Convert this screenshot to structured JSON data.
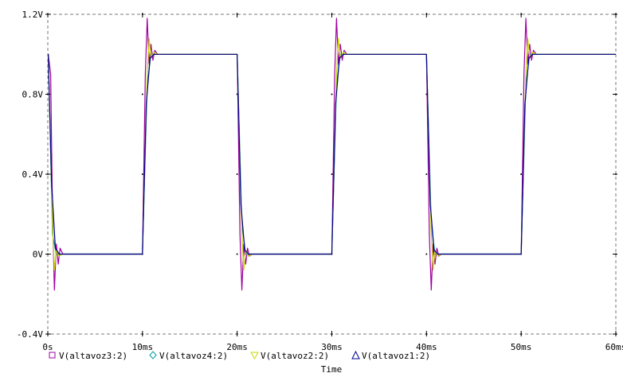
{
  "chart_data": {
    "type": "line",
    "xlabel": "Time",
    "ylabel": "",
    "x_unit": "ms",
    "xlim": [
      0,
      60
    ],
    "ylim": [
      -0.4,
      1.2
    ],
    "x_ticks": [
      0,
      10,
      20,
      30,
      40,
      50,
      60
    ],
    "x_tick_labels": [
      "0s",
      "10ms",
      "20ms",
      "30ms",
      "40ms",
      "50ms",
      "60ms"
    ],
    "y_ticks": [
      -0.4,
      0,
      0.4,
      0.8,
      1.2
    ],
    "y_tick_labels": [
      "-0.4V",
      "0V",
      "0.4V",
      "0.8V",
      "1.2V"
    ],
    "grid": true,
    "legend_position": "bottom",
    "series": [
      {
        "name": "V(altavoz3:2)",
        "color": "#a000a0",
        "marker": "square",
        "x": [
          0,
          0.05,
          0.3,
          0.5,
          0.7,
          0.9,
          1.1,
          1.3,
          1.6,
          2,
          10,
          10.3,
          10.5,
          10.7,
          10.9,
          11.1,
          11.3,
          11.6,
          12,
          12.5,
          13,
          20,
          20.3,
          20.5,
          20.7,
          20.9,
          21.1,
          21.3,
          21.6,
          22,
          30,
          30.3,
          30.5,
          30.7,
          30.9,
          31.1,
          31.3,
          31.6,
          32,
          32.5,
          33,
          40,
          40.3,
          40.5,
          40.7,
          40.9,
          41.1,
          41.3,
          41.6,
          42,
          50,
          50.3,
          50.5,
          50.7,
          50.9,
          51.1,
          51.3,
          51.6,
          52,
          52.5,
          53,
          60
        ],
        "y": [
          1.0,
          1.0,
          0.9,
          0.2,
          -0.18,
          0.05,
          -0.05,
          0.03,
          0.0,
          0.0,
          0.0,
          0.9,
          1.18,
          0.95,
          1.05,
          0.97,
          1.02,
          1.0,
          1.0,
          1.0,
          1.0,
          1.0,
          0.1,
          -0.18,
          0.05,
          -0.05,
          0.03,
          -0.01,
          0.0,
          0.0,
          0.0,
          0.9,
          1.18,
          0.95,
          1.05,
          0.97,
          1.02,
          1.0,
          1.0,
          1.0,
          1.0,
          1.0,
          0.1,
          -0.18,
          0.05,
          -0.05,
          0.03,
          -0.01,
          0.0,
          0.0,
          0.0,
          0.9,
          1.18,
          0.95,
          1.05,
          0.97,
          1.02,
          1.0,
          1.0,
          1.0,
          1.0,
          1.0
        ]
      },
      {
        "name": "V(altavoz4:2)",
        "color": "#00a0a0",
        "marker": "diamond",
        "x": [
          0,
          0.05,
          0.5,
          0.9,
          1.3,
          2,
          10,
          10.5,
          10.9,
          11.3,
          12,
          20,
          20.5,
          20.9,
          21.3,
          22,
          30,
          30.5,
          30.9,
          31.3,
          32,
          40,
          40.5,
          40.9,
          41.3,
          42,
          50,
          50.5,
          50.9,
          51.3,
          52,
          60
        ],
        "y": [
          1.0,
          1.0,
          0.1,
          0.0,
          0.0,
          0.0,
          0.0,
          0.85,
          1.0,
          1.0,
          1.0,
          1.0,
          0.15,
          0.0,
          0.0,
          0.0,
          0.0,
          0.85,
          1.0,
          1.0,
          1.0,
          1.0,
          0.15,
          0.0,
          0.0,
          0.0,
          0.0,
          0.85,
          1.0,
          1.0,
          1.0,
          1.0
        ]
      },
      {
        "name": "V(altavoz2:2)",
        "color": "#c8d800",
        "marker": "triangle-down",
        "x": [
          0,
          0.05,
          0.5,
          0.7,
          0.9,
          1.2,
          1.6,
          2,
          10,
          10.5,
          10.7,
          10.9,
          11.2,
          11.6,
          12,
          20,
          20.5,
          20.7,
          20.9,
          21.2,
          21.6,
          22,
          30,
          30.5,
          30.7,
          30.9,
          31.2,
          31.6,
          32,
          40,
          40.5,
          40.7,
          40.9,
          41.2,
          41.6,
          42,
          50,
          50.5,
          50.7,
          50.9,
          51.2,
          51.6,
          52,
          60
        ],
        "y": [
          1.0,
          1.0,
          0.15,
          -0.08,
          0.02,
          -0.01,
          0.0,
          0.0,
          0.0,
          0.9,
          1.08,
          0.98,
          1.01,
          1.0,
          1.0,
          1.0,
          0.1,
          -0.08,
          0.02,
          -0.01,
          0.0,
          0.0,
          0.0,
          0.9,
          1.08,
          0.98,
          1.01,
          1.0,
          1.0,
          1.0,
          0.1,
          -0.08,
          0.02,
          -0.01,
          0.0,
          0.0,
          0.0,
          0.9,
          1.08,
          0.98,
          1.01,
          1.0,
          1.0,
          1.0
        ]
      },
      {
        "name": "V(altavoz1:2)",
        "color": "#000090",
        "marker": "triangle-up",
        "x": [
          0,
          0.05,
          0.4,
          0.8,
          1.2,
          2,
          10,
          10.4,
          10.8,
          11.2,
          12,
          20,
          20.4,
          20.8,
          21.2,
          22,
          30,
          30.4,
          30.8,
          31.2,
          32,
          40,
          40.4,
          40.8,
          41.2,
          42,
          50,
          50.4,
          50.8,
          51.2,
          52,
          60
        ],
        "y": [
          1.0,
          1.0,
          0.35,
          0.03,
          0.0,
          0.0,
          0.0,
          0.75,
          0.98,
          1.0,
          1.0,
          1.0,
          0.25,
          0.02,
          0.0,
          0.0,
          0.0,
          0.75,
          0.98,
          1.0,
          1.0,
          1.0,
          0.25,
          0.02,
          0.0,
          0.0,
          0.0,
          0.75,
          0.98,
          1.0,
          1.0,
          1.0
        ]
      }
    ]
  }
}
